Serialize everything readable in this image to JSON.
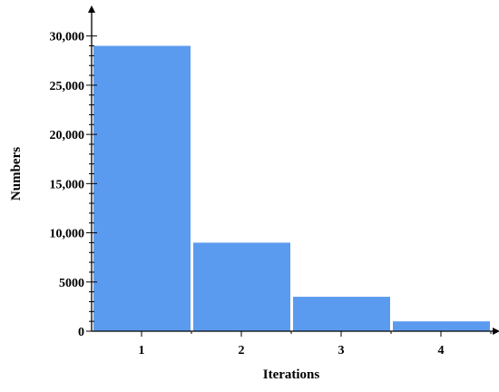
{
  "chart_data": {
    "type": "bar",
    "categories": [
      "1",
      "2",
      "3",
      "4"
    ],
    "values": [
      29000,
      9000,
      3500,
      1000
    ],
    "xlabel": "Iterations",
    "ylabel": "Numbers",
    "ylim": [
      0,
      32000
    ],
    "yticks": [
      0,
      5000,
      10000,
      15000,
      20000,
      25000,
      30000
    ],
    "ytick_labels": [
      "0",
      "5000",
      "10,000",
      "15,000",
      "20,000",
      "25,000",
      "30,000"
    ],
    "bar_color": "#5b9bef",
    "grid": false,
    "legend": "none"
  }
}
